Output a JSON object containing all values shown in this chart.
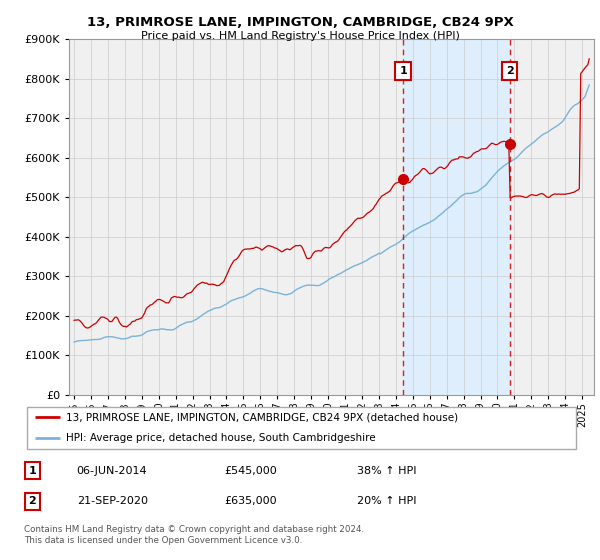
{
  "title": "13, PRIMROSE LANE, IMPINGTON, CAMBRIDGE, CB24 9PX",
  "subtitle": "Price paid vs. HM Land Registry's House Price Index (HPI)",
  "legend_line1": "13, PRIMROSE LANE, IMPINGTON, CAMBRIDGE, CB24 9PX (detached house)",
  "legend_line2": "HPI: Average price, detached house, South Cambridgeshire",
  "sale1_date": "06-JUN-2014",
  "sale1_price": "£545,000",
  "sale1_hpi": "38% ↑ HPI",
  "sale2_date": "21-SEP-2020",
  "sale2_price": "£635,000",
  "sale2_hpi": "20% ↑ HPI",
  "footer": "Contains HM Land Registry data © Crown copyright and database right 2024.\nThis data is licensed under the Open Government Licence v3.0.",
  "hpi_color": "#7ab3d8",
  "price_color": "#cc0000",
  "shading_color": "#ddeeff",
  "grid_color": "#cccccc",
  "background_color": "#ffffff",
  "plot_bg_color": "#f0f0f0",
  "ylim": [
    0,
    900000
  ],
  "yticks": [
    0,
    100000,
    200000,
    300000,
    400000,
    500000,
    600000,
    700000,
    800000,
    900000
  ],
  "sale1_x": 2014.43,
  "sale1_y": 545000,
  "sale2_x": 2020.72,
  "sale2_y": 635000,
  "xmin": 1994.7,
  "xmax": 2025.7
}
